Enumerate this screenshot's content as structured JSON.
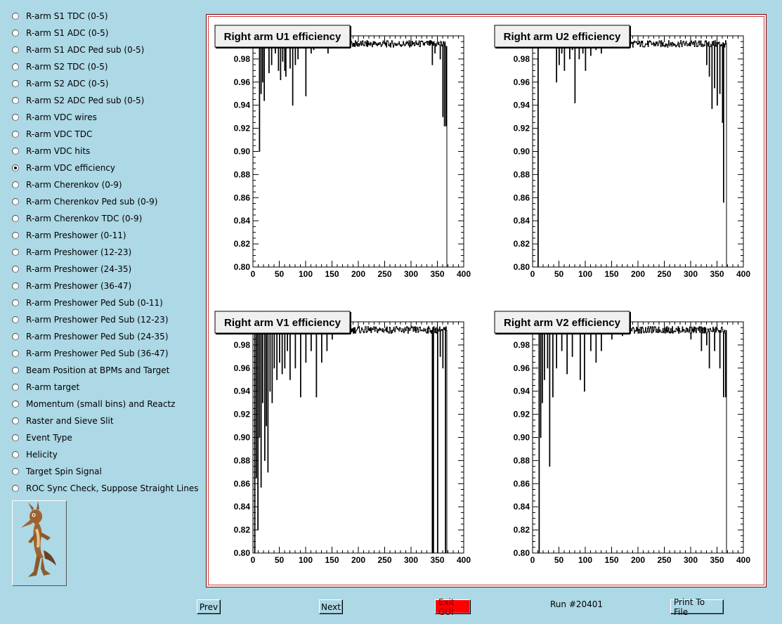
{
  "menu": {
    "items": [
      "R-arm S1 TDC (0-5)",
      "R-arm S1 ADC (0-5)",
      "R-arm S1 ADC Ped sub (0-5)",
      "R-arm S2 TDC (0-5)",
      "R-arm S2 ADC (0-5)",
      "R-arm S2 ADC Ped sub (0-5)",
      "R-arm VDC wires",
      "R-arm VDC TDC",
      "R-arm VDC hits",
      "R-arm VDC efficiency",
      "R-arm Cherenkov (0-9)",
      "R-arm Cherenkov Ped sub (0-9)",
      "R-arm Cherenkov TDC (0-9)",
      "R-arm Preshower (0-11)",
      "R-arm Preshower (12-23)",
      "R-arm Preshower (24-35)",
      "R-arm Preshower (36-47)",
      "R-arm Preshower Ped Sub (0-11)",
      "R-arm Preshower Ped Sub (12-23)",
      "R-arm Preshower Ped Sub (24-35)",
      "R-arm Preshower Ped Sub (36-47)",
      "Beam Position at BPMs and Target",
      "R-arm target",
      "Momentum (small bins) and Reactz",
      "Raster and Sieve Slit",
      "Event Type",
      "Helicity",
      "Target Spin Signal",
      "ROC Sync Check, Suppose Straight Lines"
    ],
    "selected_index": 9
  },
  "mascot_icon": "coyote-mascot-icon",
  "buttons": {
    "prev": "Prev",
    "next": "Next",
    "exit": "Exit GUI",
    "print": "Print To File"
  },
  "run_label": "Run #20401",
  "colors": {
    "background": "#add8e6",
    "exit_button": "#ff0000",
    "canvas_border": "#d04040"
  },
  "chart_data": [
    {
      "type": "bar",
      "title": "Right arm U1 efficiency",
      "xlim": [
        0,
        400
      ],
      "ylim": [
        0.8,
        1.0
      ],
      "xticks": [
        0,
        50,
        100,
        150,
        200,
        250,
        300,
        350,
        400
      ],
      "yticks": [
        0.8,
        0.82,
        0.84,
        0.86,
        0.88,
        0.9,
        0.92,
        0.94,
        0.96,
        0.98
      ],
      "active_range": [
        0,
        368
      ],
      "dips": [
        [
          12,
          0.9
        ],
        [
          15,
          0.95
        ],
        [
          18,
          0.96
        ],
        [
          21,
          0.944
        ],
        [
          30,
          0.968
        ],
        [
          35,
          0.975
        ],
        [
          42,
          0.985
        ],
        [
          48,
          0.97
        ],
        [
          52,
          0.962
        ],
        [
          56,
          0.978
        ],
        [
          60,
          0.97
        ],
        [
          62,
          0.965
        ],
        [
          70,
          0.972
        ],
        [
          75,
          0.94
        ],
        [
          80,
          0.975
        ],
        [
          85,
          0.98
        ],
        [
          100,
          0.948
        ],
        [
          110,
          0.985
        ],
        [
          115,
          0.988
        ],
        [
          128,
          0.99
        ],
        [
          142,
          0.985
        ],
        [
          170,
          0.992
        ],
        [
          340,
          0.975
        ],
        [
          345,
          0.985
        ],
        [
          355,
          0.98
        ],
        [
          360,
          0.93
        ],
        [
          363,
          0.922
        ],
        [
          366,
          0.922
        ],
        [
          368,
          0.8
        ]
      ]
    },
    {
      "type": "bar",
      "title": "Right arm U2 efficiency",
      "xlim": [
        0,
        400
      ],
      "ylim": [
        0.8,
        1.0
      ],
      "xticks": [
        0,
        50,
        100,
        150,
        200,
        250,
        300,
        350,
        400
      ],
      "yticks": [
        0.8,
        0.82,
        0.84,
        0.86,
        0.88,
        0.9,
        0.92,
        0.94,
        0.96,
        0.98
      ],
      "active_range": [
        0,
        368
      ],
      "dips": [
        [
          10,
          0.8
        ],
        [
          45,
          0.96
        ],
        [
          50,
          0.975
        ],
        [
          55,
          0.985
        ],
        [
          60,
          0.97
        ],
        [
          70,
          0.98
        ],
        [
          75,
          0.988
        ],
        [
          80,
          0.942
        ],
        [
          88,
          0.98
        ],
        [
          95,
          0.985
        ],
        [
          100,
          0.97
        ],
        [
          110,
          0.983
        ],
        [
          120,
          0.988
        ],
        [
          130,
          0.985
        ],
        [
          330,
          0.975
        ],
        [
          335,
          0.965
        ],
        [
          340,
          0.937
        ],
        [
          345,
          0.955
        ],
        [
          350,
          0.94
        ],
        [
          355,
          0.95
        ],
        [
          360,
          0.925
        ],
        [
          362,
          0.856
        ]
      ]
    },
    {
      "type": "bar",
      "title": "Right arm V1 efficiency",
      "xlim": [
        0,
        400
      ],
      "ylim": [
        0.8,
        1.0
      ],
      "xticks": [
        0,
        50,
        100,
        150,
        200,
        250,
        300,
        350,
        400
      ],
      "yticks": [
        0.8,
        0.82,
        0.84,
        0.86,
        0.88,
        0.9,
        0.92,
        0.94,
        0.96,
        0.98
      ],
      "active_range": [
        0,
        368
      ],
      "dips": [
        [
          3,
          0.8
        ],
        [
          6,
          0.865
        ],
        [
          9,
          0.82
        ],
        [
          12,
          0.9
        ],
        [
          15,
          0.857
        ],
        [
          18,
          0.93
        ],
        [
          22,
          0.88
        ],
        [
          25,
          0.91
        ],
        [
          28,
          0.87
        ],
        [
          32,
          0.94
        ],
        [
          36,
          0.93
        ],
        [
          40,
          0.96
        ],
        [
          45,
          0.95
        ],
        [
          50,
          0.965
        ],
        [
          55,
          0.955
        ],
        [
          60,
          0.96
        ],
        [
          65,
          0.975
        ],
        [
          70,
          0.95
        ],
        [
          80,
          0.96
        ],
        [
          90,
          0.935
        ],
        [
          100,
          0.965
        ],
        [
          110,
          0.975
        ],
        [
          120,
          0.935
        ],
        [
          130,
          0.965
        ],
        [
          140,
          0.975
        ],
        [
          150,
          0.985
        ],
        [
          340,
          0.8
        ],
        [
          342,
          0.8
        ],
        [
          350,
          0.8
        ],
        [
          355,
          0.97
        ],
        [
          360,
          0.96
        ],
        [
          365,
          0.8
        ]
      ]
    },
    {
      "type": "bar",
      "title": "Right arm V2 efficiency",
      "xlim": [
        0,
        400
      ],
      "ylim": [
        0.8,
        1.0
      ],
      "xticks": [
        0,
        50,
        100,
        150,
        200,
        250,
        300,
        350,
        400
      ],
      "yticks": [
        0.8,
        0.82,
        0.84,
        0.86,
        0.88,
        0.9,
        0.92,
        0.94,
        0.96,
        0.98
      ],
      "active_range": [
        0,
        368
      ],
      "dips": [
        [
          12,
          0.8
        ],
        [
          15,
          0.9
        ],
        [
          18,
          0.93
        ],
        [
          22,
          0.95
        ],
        [
          28,
          0.96
        ],
        [
          32,
          0.875
        ],
        [
          38,
          0.935
        ],
        [
          45,
          0.96
        ],
        [
          55,
          0.975
        ],
        [
          65,
          0.955
        ],
        [
          75,
          0.97
        ],
        [
          90,
          0.95
        ],
        [
          98,
          0.94
        ],
        [
          110,
          0.975
        ],
        [
          120,
          0.965
        ],
        [
          130,
          0.975
        ],
        [
          150,
          0.985
        ],
        [
          170,
          0.988
        ],
        [
          300,
          0.985
        ],
        [
          320,
          0.975
        ],
        [
          330,
          0.98
        ],
        [
          335,
          0.96
        ],
        [
          345,
          0.975
        ],
        [
          355,
          0.96
        ],
        [
          362,
          0.935
        ],
        [
          366,
          0.935
        ]
      ]
    }
  ]
}
